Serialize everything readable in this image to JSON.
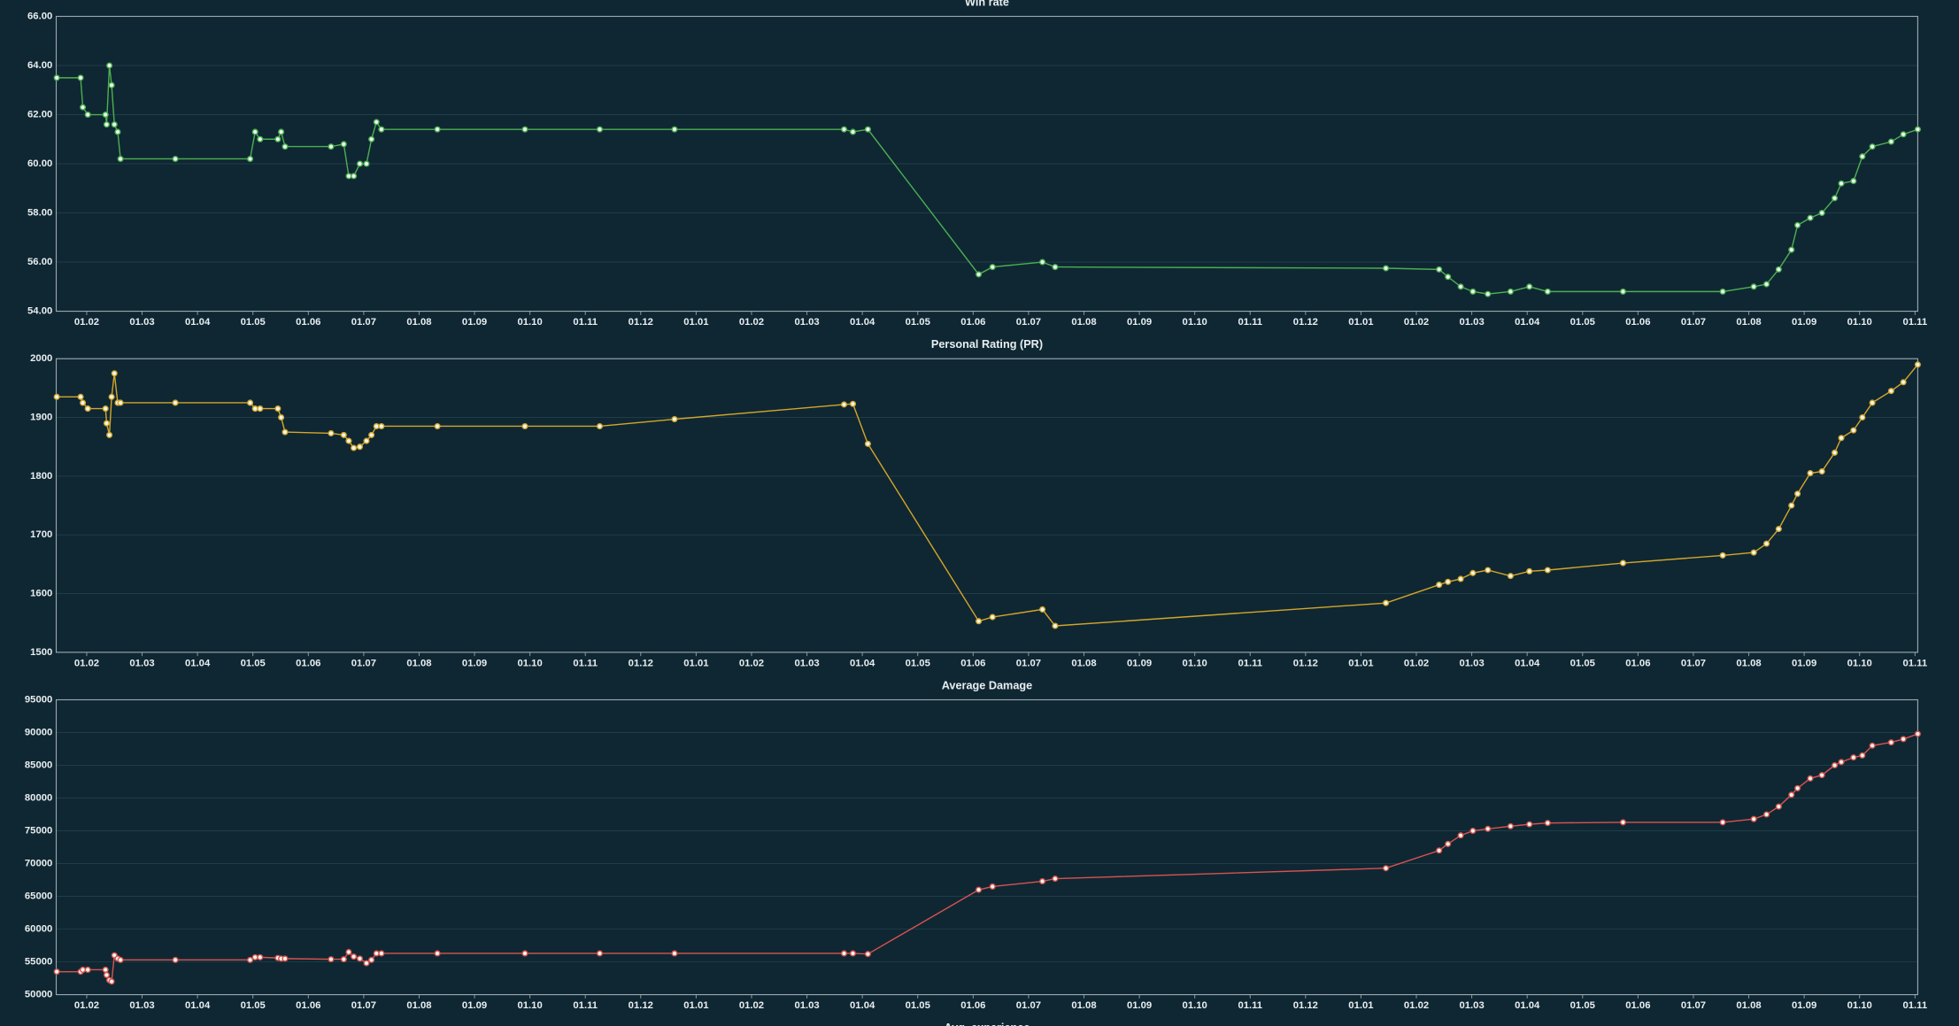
{
  "chart_data": [
    {
      "type": "line",
      "title": "Win rate",
      "color": "#4caf50",
      "grid": true,
      "x": [
        -0.54,
        -0.11,
        -0.07,
        0.02,
        0.34,
        0.36,
        0.41,
        0.45,
        0.5,
        0.56,
        0.61,
        1.6,
        2.95,
        3.04,
        3.13,
        3.45,
        3.51,
        3.58,
        4.41,
        4.64,
        4.73,
        4.82,
        4.93,
        5.05,
        5.14,
        5.23,
        5.32,
        6.33,
        7.91,
        9.26,
        10.61,
        13.67,
        13.83,
        14.1,
        16.1,
        16.35,
        17.25,
        17.48,
        23.45,
        24.41,
        24.57,
        24.8,
        25.02,
        25.29,
        25.7,
        26.04,
        26.37,
        27.73,
        29.53,
        30.09,
        30.32,
        30.54,
        30.77,
        30.88,
        31.11,
        31.32,
        31.55,
        31.67,
        31.89,
        32.05,
        32.23,
        32.57,
        32.79,
        33.05
      ],
      "series": [
        {
          "name": "Win rate",
          "color": "#4caf50",
          "values": [
            63.5,
            63.5,
            62.3,
            62.0,
            62.0,
            61.6,
            64.0,
            63.2,
            61.6,
            61.3,
            60.2,
            60.2,
            60.2,
            61.3,
            61.0,
            61.0,
            61.3,
            60.7,
            60.7,
            60.8,
            59.5,
            59.5,
            60.0,
            60.0,
            61.0,
            61.7,
            61.4,
            61.4,
            61.4,
            61.4,
            61.4,
            61.4,
            61.3,
            61.4,
            55.5,
            55.8,
            56.0,
            55.8,
            55.75,
            55.7,
            55.4,
            55.0,
            54.8,
            54.7,
            54.8,
            55.0,
            54.8,
            54.8,
            54.8,
            55.0,
            55.1,
            55.7,
            56.5,
            57.5,
            57.8,
            58.0,
            58.6,
            59.2,
            59.3,
            60.3,
            60.7,
            60.9,
            61.2,
            61.4
          ]
        }
      ],
      "xlim": [
        -0.55,
        33.05
      ],
      "xticks": [
        {
          "value": 0,
          "label": "01.02"
        },
        {
          "value": 1,
          "label": "01.03"
        },
        {
          "value": 2,
          "label": "01.04"
        },
        {
          "value": 3,
          "label": "01.05"
        },
        {
          "value": 4,
          "label": "01.06"
        },
        {
          "value": 5,
          "label": "01.07"
        },
        {
          "value": 6,
          "label": "01.08"
        },
        {
          "value": 7,
          "label": "01.09"
        },
        {
          "value": 8,
          "label": "01.10"
        },
        {
          "value": 9,
          "label": "01.11"
        },
        {
          "value": 10,
          "label": "01.12"
        },
        {
          "value": 11,
          "label": "01.01"
        },
        {
          "value": 12,
          "label": "01.02"
        },
        {
          "value": 13,
          "label": "01.03"
        },
        {
          "value": 14,
          "label": "01.04"
        },
        {
          "value": 15,
          "label": "01.05"
        },
        {
          "value": 16,
          "label": "01.06"
        },
        {
          "value": 17,
          "label": "01.07"
        },
        {
          "value": 18,
          "label": "01.08"
        },
        {
          "value": 19,
          "label": "01.09"
        },
        {
          "value": 20,
          "label": "01.10"
        },
        {
          "value": 21,
          "label": "01.11"
        },
        {
          "value": 22,
          "label": "01.12"
        },
        {
          "value": 23,
          "label": "01.01"
        },
        {
          "value": 24,
          "label": "01.02"
        },
        {
          "value": 25,
          "label": "01.03"
        },
        {
          "value": 26,
          "label": "01.04"
        },
        {
          "value": 27,
          "label": "01.05"
        },
        {
          "value": 28,
          "label": "01.06"
        },
        {
          "value": 29,
          "label": "01.07"
        },
        {
          "value": 30,
          "label": "01.08"
        },
        {
          "value": 31,
          "label": "01.09"
        },
        {
          "value": 32,
          "label": "01.10"
        },
        {
          "value": 33,
          "label": "01.11"
        }
      ],
      "ylim": [
        54,
        66
      ],
      "yticks": [
        {
          "value": 54,
          "label": "54.00"
        },
        {
          "value": 56,
          "label": "56.00"
        },
        {
          "value": 58,
          "label": "58.00"
        },
        {
          "value": 60,
          "label": "60.00"
        },
        {
          "value": 62,
          "label": "62.00"
        },
        {
          "value": 64,
          "label": "64.00"
        },
        {
          "value": 66,
          "label": "66.00"
        }
      ]
    },
    {
      "type": "line",
      "title": "Personal Rating (PR)",
      "color": "#d4a62a",
      "grid": true,
      "x": [
        -0.54,
        -0.11,
        -0.07,
        0.02,
        0.34,
        0.36,
        0.41,
        0.45,
        0.5,
        0.56,
        0.61,
        1.6,
        2.95,
        3.04,
        3.13,
        3.45,
        3.51,
        3.58,
        4.41,
        4.64,
        4.73,
        4.82,
        4.93,
        5.05,
        5.14,
        5.23,
        5.32,
        6.33,
        7.91,
        9.26,
        10.61,
        13.67,
        13.83,
        14.1,
        16.1,
        16.35,
        17.25,
        17.48,
        23.45,
        24.41,
        24.57,
        24.8,
        25.02,
        25.29,
        25.7,
        26.04,
        26.37,
        27.73,
        29.53,
        30.09,
        30.32,
        30.54,
        30.77,
        30.88,
        31.11,
        31.32,
        31.55,
        31.67,
        31.89,
        32.05,
        32.23,
        32.57,
        32.79,
        33.05
      ],
      "series": [
        {
          "name": "Personal Rating (PR)",
          "color": "#d4a62a",
          "values": [
            1935,
            1935,
            1925,
            1915,
            1915,
            1890,
            1870,
            1935,
            1975,
            1925,
            1925,
            1925,
            1925,
            1915,
            1915,
            1915,
            1900,
            1875,
            1873,
            1870,
            1860,
            1848,
            1850,
            1860,
            1870,
            1885,
            1885,
            1885,
            1885,
            1885,
            1897,
            1922,
            1923,
            1855,
            1553,
            1560,
            1573,
            1545,
            1584,
            1615,
            1620,
            1625,
            1635,
            1640,
            1630,
            1638,
            1640,
            1652,
            1665,
            1670,
            1685,
            1710,
            1750,
            1770,
            1805,
            1808,
            1840,
            1865,
            1878,
            1900,
            1925,
            1945,
            1960,
            1990
          ]
        }
      ],
      "xlim": [
        -0.55,
        33.05
      ],
      "xticks": [
        {
          "value": 0,
          "label": "01.02"
        },
        {
          "value": 1,
          "label": "01.03"
        },
        {
          "value": 2,
          "label": "01.04"
        },
        {
          "value": 3,
          "label": "01.05"
        },
        {
          "value": 4,
          "label": "01.06"
        },
        {
          "value": 5,
          "label": "01.07"
        },
        {
          "value": 6,
          "label": "01.08"
        },
        {
          "value": 7,
          "label": "01.09"
        },
        {
          "value": 8,
          "label": "01.10"
        },
        {
          "value": 9,
          "label": "01.11"
        },
        {
          "value": 10,
          "label": "01.12"
        },
        {
          "value": 11,
          "label": "01.01"
        },
        {
          "value": 12,
          "label": "01.02"
        },
        {
          "value": 13,
          "label": "01.03"
        },
        {
          "value": 14,
          "label": "01.04"
        },
        {
          "value": 15,
          "label": "01.05"
        },
        {
          "value": 16,
          "label": "01.06"
        },
        {
          "value": 17,
          "label": "01.07"
        },
        {
          "value": 18,
          "label": "01.08"
        },
        {
          "value": 19,
          "label": "01.09"
        },
        {
          "value": 20,
          "label": "01.10"
        },
        {
          "value": 21,
          "label": "01.11"
        },
        {
          "value": 22,
          "label": "01.12"
        },
        {
          "value": 23,
          "label": "01.01"
        },
        {
          "value": 24,
          "label": "01.02"
        },
        {
          "value": 25,
          "label": "01.03"
        },
        {
          "value": 26,
          "label": "01.04"
        },
        {
          "value": 27,
          "label": "01.05"
        },
        {
          "value": 28,
          "label": "01.06"
        },
        {
          "value": 29,
          "label": "01.07"
        },
        {
          "value": 30,
          "label": "01.08"
        },
        {
          "value": 31,
          "label": "01.09"
        },
        {
          "value": 32,
          "label": "01.10"
        },
        {
          "value": 33,
          "label": "01.11"
        }
      ],
      "ylim": [
        1500,
        2000
      ],
      "yticks": [
        1500,
        1600,
        1700,
        1800,
        1900,
        2000
      ]
    },
    {
      "type": "line",
      "title": "Average Damage",
      "color": "#d9534f",
      "grid": true,
      "x": [
        -0.54,
        -0.11,
        -0.07,
        0.02,
        0.34,
        0.36,
        0.41,
        0.45,
        0.5,
        0.56,
        0.61,
        1.6,
        2.95,
        3.04,
        3.13,
        3.45,
        3.51,
        3.58,
        4.41,
        4.64,
        4.73,
        4.82,
        4.93,
        5.05,
        5.14,
        5.23,
        5.32,
        6.33,
        7.91,
        9.26,
        10.61,
        13.67,
        13.83,
        14.1,
        16.1,
        16.35,
        17.25,
        17.48,
        23.45,
        24.41,
        24.57,
        24.8,
        25.02,
        25.29,
        25.7,
        26.04,
        26.37,
        27.73,
        29.53,
        30.09,
        30.32,
        30.54,
        30.77,
        30.88,
        31.11,
        31.32,
        31.55,
        31.67,
        31.89,
        32.05,
        32.23,
        32.57,
        32.79,
        33.05
      ],
      "series": [
        {
          "name": "Average Damage",
          "color": "#d9534f",
          "values": [
            53500,
            53500,
            53800,
            53800,
            53800,
            53000,
            52200,
            52000,
            56000,
            55500,
            55300,
            55300,
            55300,
            55700,
            55700,
            55600,
            55500,
            55500,
            55400,
            55400,
            56500,
            55800,
            55500,
            54800,
            55300,
            56300,
            56300,
            56300,
            56300,
            56300,
            56300,
            56300,
            56300,
            56200,
            66000,
            66500,
            67300,
            67700,
            69300,
            72000,
            73000,
            74300,
            75000,
            75300,
            75700,
            76000,
            76200,
            76300,
            76300,
            76800,
            77500,
            78700,
            80500,
            81500,
            83000,
            83500,
            85000,
            85500,
            86200,
            86500,
            88000,
            88500,
            89000,
            89800
          ]
        }
      ],
      "xlim": [
        -0.55,
        33.05
      ],
      "xticks": [
        {
          "value": 0,
          "label": "01.02"
        },
        {
          "value": 1,
          "label": "01.03"
        },
        {
          "value": 2,
          "label": "01.04"
        },
        {
          "value": 3,
          "label": "01.05"
        },
        {
          "value": 4,
          "label": "01.06"
        },
        {
          "value": 5,
          "label": "01.07"
        },
        {
          "value": 6,
          "label": "01.08"
        },
        {
          "value": 7,
          "label": "01.09"
        },
        {
          "value": 8,
          "label": "01.10"
        },
        {
          "value": 9,
          "label": "01.11"
        },
        {
          "value": 10,
          "label": "01.12"
        },
        {
          "value": 11,
          "label": "01.01"
        },
        {
          "value": 12,
          "label": "01.02"
        },
        {
          "value": 13,
          "label": "01.03"
        },
        {
          "value": 14,
          "label": "01.04"
        },
        {
          "value": 15,
          "label": "01.05"
        },
        {
          "value": 16,
          "label": "01.06"
        },
        {
          "value": 17,
          "label": "01.07"
        },
        {
          "value": 18,
          "label": "01.08"
        },
        {
          "value": 19,
          "label": "01.09"
        },
        {
          "value": 20,
          "label": "01.10"
        },
        {
          "value": 21,
          "label": "01.11"
        },
        {
          "value": 22,
          "label": "01.12"
        },
        {
          "value": 23,
          "label": "01.01"
        },
        {
          "value": 24,
          "label": "01.02"
        },
        {
          "value": 25,
          "label": "01.03"
        },
        {
          "value": 26,
          "label": "01.04"
        },
        {
          "value": 27,
          "label": "01.05"
        },
        {
          "value": 28,
          "label": "01.06"
        },
        {
          "value": 29,
          "label": "01.07"
        },
        {
          "value": 30,
          "label": "01.08"
        },
        {
          "value": 31,
          "label": "01.09"
        },
        {
          "value": 32,
          "label": "01.10"
        },
        {
          "value": 33,
          "label": "01.11"
        }
      ],
      "ylim": [
        50000,
        95000
      ],
      "yticks": [
        50000,
        55000,
        60000,
        65000,
        70000,
        75000,
        80000,
        85000,
        90000,
        95000
      ]
    },
    {
      "type": "line",
      "title": "Avg. experience"
    }
  ]
}
